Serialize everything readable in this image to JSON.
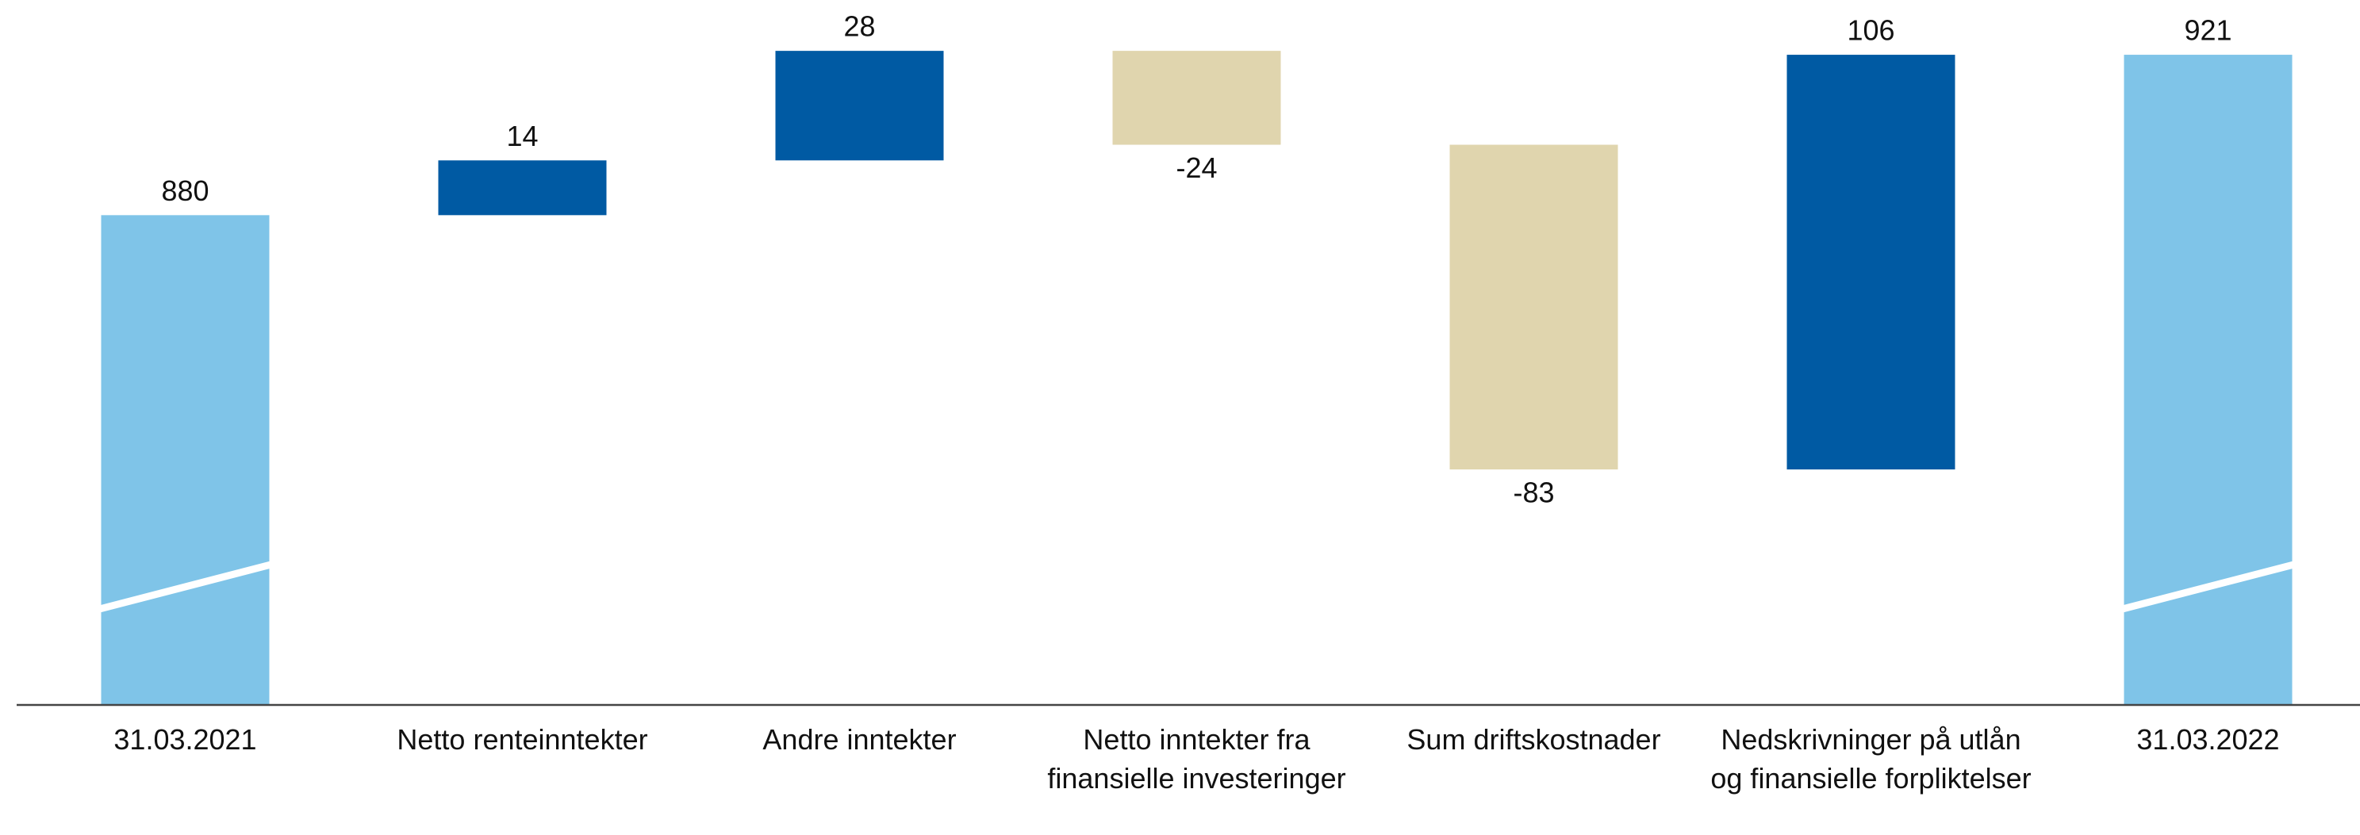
{
  "chart_data": {
    "type": "waterfall",
    "categories": [
      "31.03.2021",
      "Netto renteinntekter",
      "Andre inntekter",
      "Netto inntekter fra finansielle investeringer",
      "Sum driftskostnader",
      "Nedskrivninger på utlån og finansielle forpliktelser",
      "31.03.2022"
    ],
    "values": [
      880,
      14,
      28,
      -24,
      -83,
      106,
      921
    ],
    "measure": [
      "absolute",
      "relative",
      "relative",
      "relative",
      "relative",
      "relative",
      "absolute"
    ],
    "colors": {
      "absolute": "#7fc4e8",
      "increase": "#005aa3",
      "decrease": "#e0d5ae"
    },
    "ylim": [
      755,
      935
    ],
    "axis_break": true
  }
}
